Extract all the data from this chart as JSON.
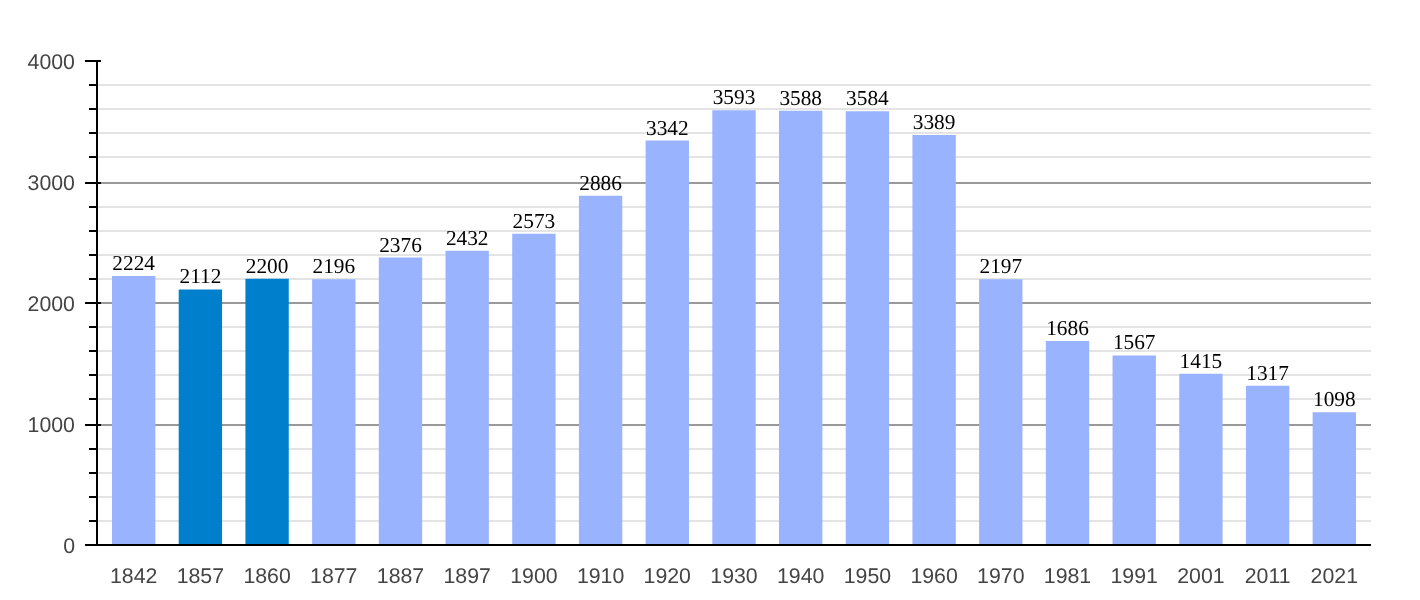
{
  "chart_data": {
    "type": "bar",
    "categories": [
      "1842",
      "1857",
      "1860",
      "1877",
      "1887",
      "1897",
      "1900",
      "1910",
      "1920",
      "1930",
      "1940",
      "1950",
      "1960",
      "1970",
      "1981",
      "1991",
      "2001",
      "2011",
      "2021"
    ],
    "values": [
      2224,
      2112,
      2200,
      2196,
      2376,
      2432,
      2573,
      2886,
      3342,
      3593,
      3588,
      3584,
      3389,
      2197,
      1686,
      1567,
      1415,
      1317,
      1098
    ],
    "colors": [
      "#99b3ff",
      "#0080cc",
      "#0080cc",
      "#99b3ff",
      "#99b3ff",
      "#99b3ff",
      "#99b3ff",
      "#99b3ff",
      "#99b3ff",
      "#99b3ff",
      "#99b3ff",
      "#99b3ff",
      "#99b3ff",
      "#99b3ff",
      "#99b3ff",
      "#99b3ff",
      "#99b3ff",
      "#99b3ff",
      "#99b3ff"
    ],
    "ylim": [
      0,
      4000
    ],
    "yticks": [
      0,
      1000,
      2000,
      3000,
      4000
    ],
    "grid": "y",
    "data_labels": true
  }
}
